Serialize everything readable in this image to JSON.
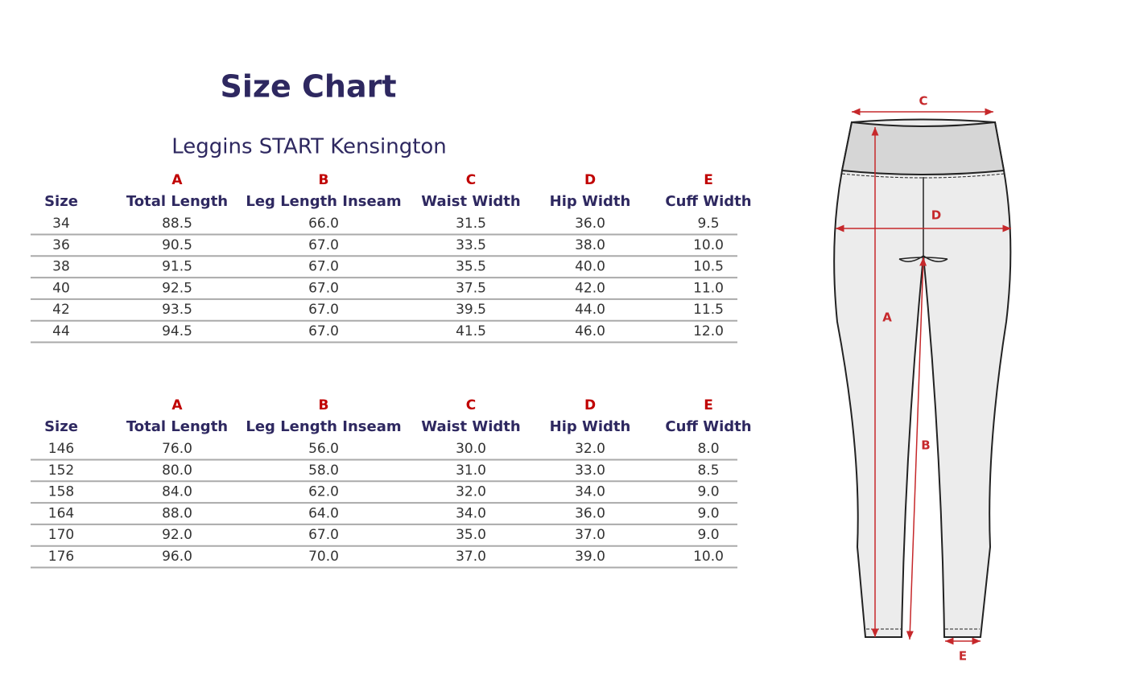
{
  "title": "Size Chart",
  "subtitle": "Leggins START Kensington",
  "tables": [
    {
      "letters": [
        "A",
        "B",
        "C",
        "D",
        "E"
      ],
      "headers": [
        "Size",
        "Total Length",
        "Leg Length Inseam",
        "Waist Width",
        "Hip Width",
        "Cuff Width"
      ],
      "rows": [
        [
          "34",
          "88.5",
          "66.0",
          "31.5",
          "36.0",
          "9.5"
        ],
        [
          "36",
          "90.5",
          "67.0",
          "33.5",
          "38.0",
          "10.0"
        ],
        [
          "38",
          "91.5",
          "67.0",
          "35.5",
          "40.0",
          "10.5"
        ],
        [
          "40",
          "92.5",
          "67.0",
          "37.5",
          "42.0",
          "11.0"
        ],
        [
          "42",
          "93.5",
          "67.0",
          "39.5",
          "44.0",
          "11.5"
        ],
        [
          "44",
          "94.5",
          "67.0",
          "41.5",
          "46.0",
          "12.0"
        ]
      ]
    },
    {
      "letters": [
        "A",
        "B",
        "C",
        "D",
        "E"
      ],
      "headers": [
        "Size",
        "Total Length",
        "Leg Length Inseam",
        "Waist Width",
        "Hip Width",
        "Cuff Width"
      ],
      "rows": [
        [
          "146",
          "76.0",
          "56.0",
          "30.0",
          "32.0",
          "8.0"
        ],
        [
          "152",
          "80.0",
          "58.0",
          "31.0",
          "33.0",
          "8.5"
        ],
        [
          "158",
          "84.0",
          "62.0",
          "32.0",
          "34.0",
          "9.0"
        ],
        [
          "164",
          "88.0",
          "64.0",
          "34.0",
          "36.0",
          "9.0"
        ],
        [
          "170",
          "92.0",
          "67.0",
          "35.0",
          "37.0",
          "9.0"
        ],
        [
          "176",
          "96.0",
          "70.0",
          "37.0",
          "39.0",
          "10.0"
        ]
      ]
    }
  ],
  "diagram": {
    "labels": [
      "C",
      "D",
      "A",
      "B",
      "E"
    ]
  }
}
